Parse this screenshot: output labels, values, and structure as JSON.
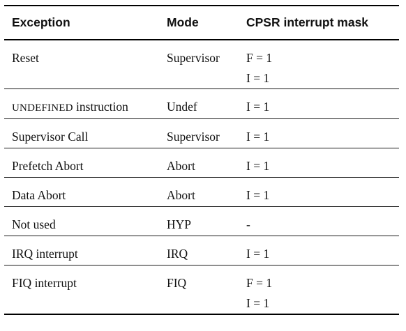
{
  "headers": {
    "exception": "Exception",
    "mode": "Mode",
    "mask": "CPSR interrupt mask"
  },
  "rows": [
    {
      "exception": "Reset",
      "mode": "Supervisor",
      "mask": [
        "F = 1",
        "I = 1"
      ]
    },
    {
      "exception_caps": "UNDEFINED",
      "exception_rest": " instruction",
      "mode": "Undef",
      "mask": [
        "I = 1"
      ]
    },
    {
      "exception": "Supervisor Call",
      "mode": "Supervisor",
      "mask": [
        "I = 1"
      ]
    },
    {
      "exception": "Prefetch Abort",
      "mode": "Abort",
      "mask": [
        "I = 1"
      ]
    },
    {
      "exception": "Data Abort",
      "mode": "Abort",
      "mask": [
        "I = 1"
      ]
    },
    {
      "exception": "Not used",
      "mode": "HYP",
      "mask": [
        "-"
      ]
    },
    {
      "exception": "IRQ interrupt",
      "mode": "IRQ",
      "mask": [
        "I = 1"
      ]
    },
    {
      "exception": "FIQ interrupt",
      "mode": "FIQ",
      "mask": [
        "F = 1",
        "I = 1"
      ]
    }
  ]
}
